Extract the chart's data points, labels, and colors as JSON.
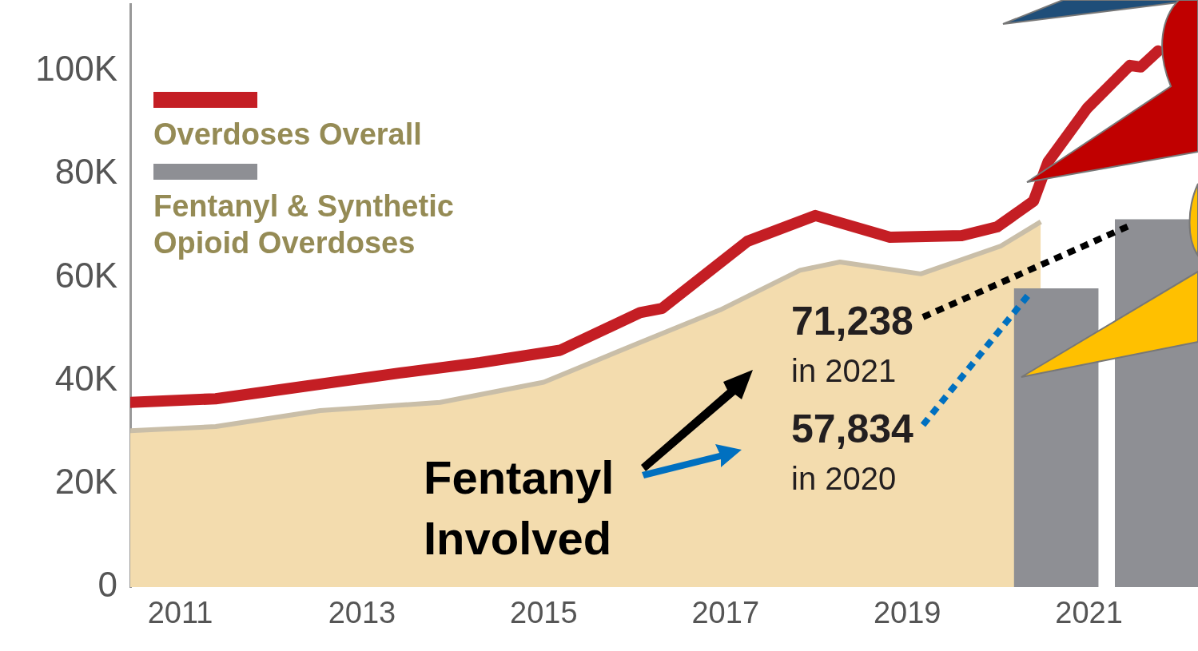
{
  "chart_data": {
    "type": "line",
    "xlim": [
      2010.45,
      2022.2
    ],
    "xticks": [
      2011,
      2013,
      2015,
      2017,
      2019,
      2021
    ],
    "ylim": [
      0,
      113000
    ],
    "yticks": [
      {
        "value": 0,
        "label": "0"
      },
      {
        "value": 20000,
        "label": "20K"
      },
      {
        "value": 40000,
        "label": "40K"
      },
      {
        "value": 60000,
        "label": "60K"
      },
      {
        "value": 80000,
        "label": "80K"
      },
      {
        "value": 100000,
        "label": "100K"
      }
    ],
    "legend": "top left",
    "annotations": [
      "Fentanyl Involved"
    ],
    "series": [
      {
        "type": "area",
        "color": "#f3dcae",
        "x": [
          2010.45,
          2011.39,
          2012.54,
          2013.86,
          2015.0,
          2016.06,
          2016.94,
          2017.82,
          2018.26,
          2019.15,
          2020.03,
          2020.47
        ],
        "values": [
          30300,
          31100,
          34200,
          35800,
          39700,
          47400,
          53700,
          61400,
          63000,
          60700,
          66100,
          70800
        ]
      },
      {
        "type": "bar",
        "name": "Fentanyl & Synthetic Opioid Overdoses",
        "color": "#8e8f94",
        "x": [
          2020.64,
          2021.75
        ],
        "values": [
          57834,
          71238
        ],
        "value_labels": [
          "57,834 in 2020",
          "71,238 in 2021"
        ]
      },
      {
        "name": "Overdoses Overall",
        "color": "#c41e24",
        "x": [
          2010.45,
          2011.39,
          2012.36,
          2013.42,
          2014.3,
          2015.18,
          2016.06,
          2016.3,
          2017.24,
          2017.99,
          2018.81,
          2019.6,
          2019.99,
          2020.39,
          2020.55,
          2020.98,
          2021.45,
          2021.57,
          2021.76
        ],
        "values": [
          35800,
          36500,
          38900,
          41500,
          43500,
          45900,
          53200,
          54000,
          67000,
          72000,
          67800,
          68100,
          69800,
          74800,
          82400,
          92800,
          101100,
          100800,
          103900
        ]
      }
    ]
  }
}
